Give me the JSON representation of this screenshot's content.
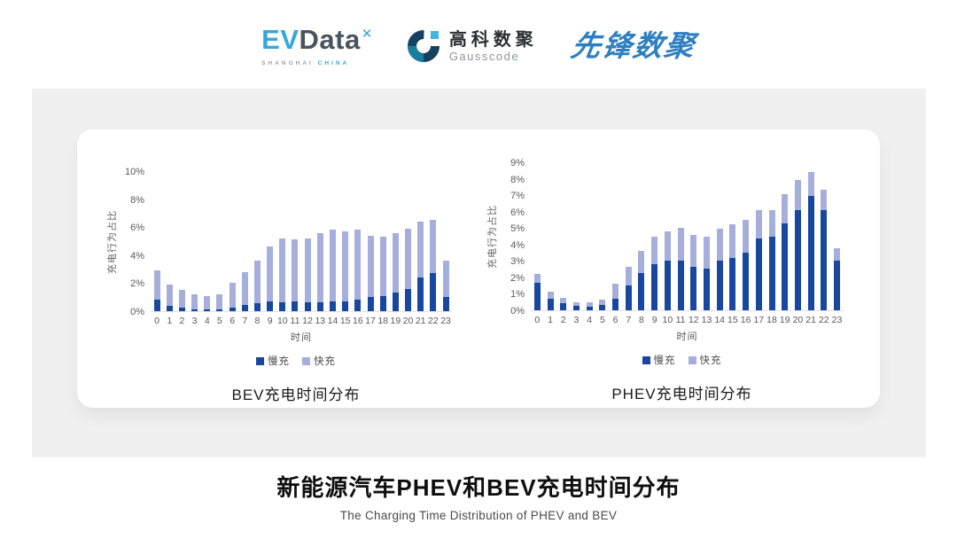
{
  "header": {
    "evdata": {
      "ev": "EV",
      "data": "Data",
      "mark": "✕",
      "sub_left": "SHANGHAI",
      "sub_right": "CHINA"
    },
    "gausscode": {
      "cn": "高科数聚",
      "en": "Gausscode"
    },
    "pioneer": {
      "text": "先锋数聚"
    }
  },
  "footer": {
    "title": "新能源汽车PHEV和BEV充电时间分布",
    "subtitle": "The Charging Time Distribution of PHEV and BEV"
  },
  "colors": {
    "slow_charge": "#17479E",
    "fast_charge": "#A6AFDC",
    "panel_gray": "#F0F0F1",
    "evdata_blue": "#36A7DC",
    "evdata_slate": "#49545E",
    "gauss_navy": "#16405F",
    "gauss_teal": "#1A7F9E",
    "gauss_sky": "#3FB6DC",
    "pioneer_blue": "#2E7FC2"
  },
  "chart_data": [
    {
      "type": "bar",
      "stacked": true,
      "title": "BEV充电时间分布",
      "xlabel": "时间",
      "ylabel": "充电行为占比",
      "ylim": [
        0,
        10
      ],
      "ytick_step": 2,
      "grid": false,
      "legend_position": "bottom",
      "categories": [
        0,
        1,
        2,
        3,
        4,
        5,
        6,
        7,
        8,
        9,
        10,
        11,
        12,
        13,
        14,
        15,
        16,
        17,
        18,
        19,
        20,
        21,
        22,
        23
      ],
      "series": [
        {
          "name": "慢充",
          "color": "#17479E",
          "values": [
            0.8,
            0.4,
            0.25,
            0.15,
            0.1,
            0.1,
            0.25,
            0.45,
            0.55,
            0.7,
            0.65,
            0.7,
            0.65,
            0.65,
            0.7,
            0.7,
            0.85,
            1.0,
            1.1,
            1.3,
            1.6,
            2.4,
            2.7,
            1.0
          ]
        },
        {
          "name": "快充",
          "color": "#A6AFDC",
          "values": [
            2.1,
            1.5,
            1.25,
            1.05,
            1.0,
            1.1,
            1.75,
            2.35,
            3.05,
            3.9,
            4.55,
            4.4,
            4.55,
            4.95,
            5.1,
            5.0,
            4.95,
            4.4,
            4.2,
            4.3,
            4.3,
            4.0,
            3.8,
            2.6
          ]
        }
      ]
    },
    {
      "type": "bar",
      "stacked": true,
      "title": "PHEV充电时间分布",
      "xlabel": "时间",
      "ylabel": "充电行为占比",
      "ylim": [
        0,
        9
      ],
      "ytick_step": 1,
      "grid": false,
      "legend_position": "bottom",
      "categories": [
        0,
        1,
        2,
        3,
        4,
        5,
        6,
        7,
        8,
        9,
        10,
        11,
        12,
        13,
        14,
        15,
        16,
        17,
        18,
        19,
        20,
        21,
        22,
        23
      ],
      "series": [
        {
          "name": "慢充",
          "color": "#17479E",
          "values": [
            1.65,
            0.7,
            0.45,
            0.25,
            0.2,
            0.3,
            0.7,
            1.5,
            2.25,
            2.8,
            3.0,
            3.0,
            2.65,
            2.55,
            3.0,
            3.2,
            3.5,
            4.35,
            4.5,
            5.3,
            6.1,
            6.95,
            6.1,
            3.0
          ]
        },
        {
          "name": "快充",
          "color": "#A6AFDC",
          "values": [
            0.55,
            0.45,
            0.3,
            0.25,
            0.3,
            0.35,
            0.9,
            1.15,
            1.35,
            1.7,
            1.8,
            2.0,
            1.95,
            1.9,
            1.95,
            2.05,
            2.0,
            1.75,
            1.6,
            1.75,
            1.8,
            1.45,
            1.25,
            0.8
          ]
        }
      ]
    }
  ]
}
